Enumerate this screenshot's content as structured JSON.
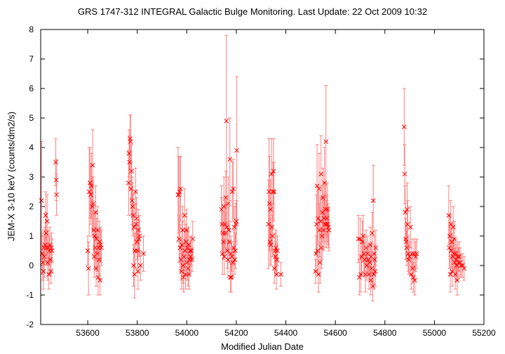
{
  "chart_data": {
    "type": "scatter",
    "title": "GRS 1747-312   INTEGRAL Galactic Bulge Monitoring.  Last Update: 22 Oct 2009 10:32",
    "xlabel": "Modified Julian Date",
    "ylabel": "JEM-X 3-10 keV (counts/dm2/s)",
    "xlim": [
      53410,
      55200
    ],
    "ylim": [
      -2,
      8
    ],
    "xticks": [
      "53600",
      "53800",
      "54000",
      "54200",
      "54400",
      "54600",
      "54800",
      "55000",
      "55200"
    ],
    "yticks": [
      "-2",
      "-1",
      "0",
      "1",
      "2",
      "3",
      "4",
      "5",
      "6",
      "7",
      "8"
    ],
    "grid": false,
    "marker": "x",
    "color": "#ff0000",
    "errorbar_color": "#ff8080",
    "points": [
      [
        53413,
        2.2,
        2.0
      ],
      [
        53416,
        0.4,
        0.7
      ],
      [
        53418,
        0.1,
        0.6
      ],
      [
        53421,
        -0.2,
        0.6
      ],
      [
        53423,
        0.6,
        0.6
      ],
      [
        53425,
        0.3,
        0.7
      ],
      [
        53428,
        0.7,
        0.6
      ],
      [
        53430,
        1.7,
        0.8
      ],
      [
        53432,
        1.1,
        0.7
      ],
      [
        53434,
        0.6,
        0.6
      ],
      [
        53436,
        1.5,
        0.9
      ],
      [
        53438,
        0.1,
        0.6
      ],
      [
        53441,
        0.6,
        0.6
      ],
      [
        53443,
        -0.3,
        0.5
      ],
      [
        53445,
        0.5,
        0.5
      ],
      [
        53447,
        0.7,
        0.6
      ],
      [
        53449,
        0.2,
        0.5
      ],
      [
        53452,
        -0.2,
        0.4
      ],
      [
        53454,
        0.6,
        0.5
      ],
      [
        53456,
        0.5,
        0.4
      ],
      [
        53471,
        3.5,
        0.8
      ],
      [
        53473,
        2.9,
        0.7
      ],
      [
        53474,
        2.4,
        0.7
      ],
      [
        53600,
        0.5,
        0.5
      ],
      [
        53603,
        -0.1,
        0.9
      ],
      [
        53606,
        2.5,
        1.5
      ],
      [
        53609,
        2.8,
        1.2
      ],
      [
        53612,
        2.4,
        1.0
      ],
      [
        53615,
        2.7,
        1.1
      ],
      [
        53618,
        2.0,
        1.0
      ],
      [
        53620,
        3.4,
        1.2
      ],
      [
        53622,
        2.1,
        0.9
      ],
      [
        53624,
        1.2,
        0.8
      ],
      [
        53626,
        0.3,
        0.7
      ],
      [
        53628,
        1.0,
        0.8
      ],
      [
        53630,
        0.6,
        0.7
      ],
      [
        53632,
        1.8,
        0.9
      ],
      [
        53634,
        -0.1,
        0.6
      ],
      [
        53636,
        0.9,
        0.7
      ],
      [
        53638,
        0.4,
        0.6
      ],
      [
        53640,
        1.2,
        0.8
      ],
      [
        53642,
        -0.4,
        0.6
      ],
      [
        53644,
        0.6,
        0.6
      ],
      [
        53646,
        0.2,
        0.5
      ],
      [
        53648,
        0.8,
        0.7
      ],
      [
        53650,
        -0.5,
        0.5
      ],
      [
        53652,
        0.7,
        0.6
      ],
      [
        53655,
        0.6,
        0.6
      ],
      [
        53765,
        2.8,
        1.1
      ],
      [
        53767,
        3.8,
        0.8
      ],
      [
        53769,
        3.5,
        0.9
      ],
      [
        53771,
        4.3,
        0.8
      ],
      [
        53773,
        4.2,
        0.9
      ],
      [
        53775,
        2.6,
        0.9
      ],
      [
        53777,
        3.2,
        0.9
      ],
      [
        53779,
        2.2,
        0.8
      ],
      [
        53781,
        2.0,
        0.8
      ],
      [
        53783,
        1.7,
        0.7
      ],
      [
        53785,
        0.0,
        0.7
      ],
      [
        53787,
        1.3,
        0.8
      ],
      [
        53789,
        -0.3,
        0.8
      ],
      [
        53791,
        0.5,
        0.6
      ],
      [
        53793,
        2.5,
        0.8
      ],
      [
        53795,
        1.4,
        0.7
      ],
      [
        53797,
        1.6,
        0.7
      ],
      [
        53799,
        0.8,
        0.6
      ],
      [
        53801,
        0.5,
        0.6
      ],
      [
        53803,
        -0.2,
        0.6
      ],
      [
        53805,
        1.2,
        0.7
      ],
      [
        53807,
        0.9,
        0.6
      ],
      [
        53809,
        1.0,
        0.7
      ],
      [
        53813,
        0.0,
        0.5
      ],
      [
        53825,
        0.4,
        0.6
      ],
      [
        53965,
        2.4,
        1.6
      ],
      [
        53967,
        2.4,
        1.3
      ],
      [
        53969,
        0.9,
        0.8
      ],
      [
        53971,
        2.5,
        1.2
      ],
      [
        53973,
        0.6,
        0.8
      ],
      [
        53975,
        2.6,
        1.1
      ],
      [
        53977,
        0.2,
        0.7
      ],
      [
        53979,
        -0.2,
        0.6
      ],
      [
        53981,
        0.7,
        0.8
      ],
      [
        53983,
        1.2,
        0.8
      ],
      [
        53985,
        0.0,
        0.6
      ],
      [
        53987,
        -0.4,
        0.5
      ],
      [
        53989,
        0.3,
        0.6
      ],
      [
        53991,
        1.7,
        0.9
      ],
      [
        53993,
        0.5,
        0.7
      ],
      [
        53995,
        -0.3,
        0.5
      ],
      [
        53997,
        0.8,
        0.6
      ],
      [
        53999,
        1.2,
        0.7
      ],
      [
        54001,
        0.1,
        0.6
      ],
      [
        54003,
        0.6,
        0.6
      ],
      [
        54005,
        -0.1,
        0.6
      ],
      [
        54007,
        0.7,
        0.6
      ],
      [
        54009,
        -0.3,
        0.5
      ],
      [
        54011,
        0.2,
        0.5
      ],
      [
        54013,
        0.5,
        0.5
      ],
      [
        54015,
        0.3,
        0.5
      ],
      [
        54018,
        0.5,
        0.5
      ],
      [
        54021,
        0.2,
        0.4
      ],
      [
        54024,
        0.9,
        0.6
      ],
      [
        54140,
        1.9,
        0.8
      ],
      [
        54142,
        1.4,
        0.9
      ],
      [
        54144,
        0.4,
        0.7
      ],
      [
        54146,
        1.1,
        0.7
      ],
      [
        54148,
        0.8,
        0.6
      ],
      [
        54150,
        2.0,
        1.0
      ],
      [
        54152,
        0.3,
        0.6
      ],
      [
        54154,
        1.4,
        0.8
      ],
      [
        54156,
        1.1,
        0.7
      ],
      [
        54158,
        2.3,
        0.9
      ],
      [
        54160,
        4.9,
        2.9
      ],
      [
        54162,
        1.3,
        0.8
      ],
      [
        54164,
        0.5,
        0.6
      ],
      [
        54166,
        0.2,
        0.6
      ],
      [
        54168,
        2.1,
        0.9
      ],
      [
        54170,
        1.2,
        0.8
      ],
      [
        54172,
        0.8,
        0.7
      ],
      [
        54174,
        3.6,
        1.4
      ],
      [
        54176,
        -0.4,
        0.5
      ],
      [
        54178,
        0.4,
        0.6
      ],
      [
        54180,
        -0.4,
        0.5
      ],
      [
        54182,
        0.3,
        0.5
      ],
      [
        54184,
        2.5,
        1.0
      ],
      [
        54186,
        0.1,
        0.5
      ],
      [
        54188,
        2.6,
        1.0
      ],
      [
        54190,
        0.6,
        0.6
      ],
      [
        54192,
        1.3,
        0.7
      ],
      [
        54194,
        0.2,
        0.5
      ],
      [
        54196,
        0.5,
        0.6
      ],
      [
        54198,
        1.4,
        0.7
      ],
      [
        54200,
        1.5,
        0.7
      ],
      [
        54202,
        3.9,
        2.5
      ],
      [
        54330,
        1.4,
        1.5
      ],
      [
        54332,
        2.5,
        1.8
      ],
      [
        54334,
        2.1,
        1.6
      ],
      [
        54336,
        0.8,
        0.8
      ],
      [
        54338,
        1.9,
        1.0
      ],
      [
        54340,
        0.7,
        0.7
      ],
      [
        54342,
        3.1,
        1.2
      ],
      [
        54344,
        1.3,
        0.8
      ],
      [
        54346,
        1.0,
        0.7
      ],
      [
        54348,
        2.5,
        1.0
      ],
      [
        54350,
        3.2,
        1.1
      ],
      [
        54352,
        2.5,
        1.0
      ],
      [
        54354,
        -0.1,
        0.5
      ],
      [
        54356,
        0.5,
        0.6
      ],
      [
        54358,
        0.3,
        0.5
      ],
      [
        54360,
        0.6,
        0.6
      ],
      [
        54362,
        -0.3,
        0.5
      ],
      [
        54364,
        0.2,
        0.5
      ],
      [
        54366,
        0.5,
        0.5
      ],
      [
        54380,
        -0.3,
        0.4
      ],
      [
        54520,
        -0.2,
        0.4
      ],
      [
        54522,
        0.4,
        0.6
      ],
      [
        54524,
        1.4,
        1.0
      ],
      [
        54526,
        2.7,
        1.4
      ],
      [
        54528,
        0.5,
        0.8
      ],
      [
        54530,
        1.6,
        0.9
      ],
      [
        54532,
        -0.3,
        0.6
      ],
      [
        54534,
        2.6,
        1.2
      ],
      [
        54536,
        1.2,
        0.9
      ],
      [
        54538,
        0.1,
        0.7
      ],
      [
        54540,
        1.5,
        0.8
      ],
      [
        54542,
        3.1,
        1.3
      ],
      [
        54544,
        0.6,
        0.7
      ],
      [
        54546,
        1.0,
        0.8
      ],
      [
        54548,
        1.8,
        0.9
      ],
      [
        54550,
        2.3,
        1.0
      ],
      [
        54552,
        1.2,
        0.7
      ],
      [
        54554,
        1.6,
        0.8
      ],
      [
        54556,
        2.8,
        1.2
      ],
      [
        54558,
        1.4,
        0.8
      ],
      [
        54560,
        1.9,
        0.9
      ],
      [
        54562,
        4.2,
        1.9
      ],
      [
        54564,
        1.4,
        0.8
      ],
      [
        54566,
        1.6,
        0.8
      ],
      [
        54568,
        1.9,
        0.9
      ],
      [
        54570,
        1.4,
        0.7
      ],
      [
        54572,
        1.3,
        0.7
      ],
      [
        54574,
        1.2,
        0.7
      ],
      [
        54693,
        0.9,
        0.8
      ],
      [
        54697,
        -0.4,
        0.6
      ],
      [
        54700,
        0.9,
        0.7
      ],
      [
        54703,
        -0.3,
        0.6
      ],
      [
        54706,
        0.3,
        0.6
      ],
      [
        54709,
        0.8,
        0.7
      ],
      [
        54712,
        1.0,
        0.7
      ],
      [
        54715,
        0.4,
        0.6
      ],
      [
        54718,
        0.2,
        0.6
      ],
      [
        54721,
        -0.3,
        0.6
      ],
      [
        54724,
        0.6,
        0.6
      ],
      [
        54727,
        0.0,
        0.5
      ],
      [
        54730,
        0.4,
        0.6
      ],
      [
        54733,
        0.2,
        0.5
      ],
      [
        54736,
        -0.3,
        0.5
      ],
      [
        54739,
        0.1,
        0.5
      ],
      [
        54741,
        0.7,
        0.6
      ],
      [
        54743,
        -0.5,
        0.5
      ],
      [
        54745,
        0.3,
        0.5
      ],
      [
        54747,
        -0.1,
        0.5
      ],
      [
        54749,
        1.1,
        0.7
      ],
      [
        54751,
        -0.7,
        0.5
      ],
      [
        54753,
        2.2,
        1.2
      ],
      [
        54755,
        -0.3,
        0.5
      ],
      [
        54757,
        0.4,
        0.6
      ],
      [
        54759,
        0.2,
        0.5
      ],
      [
        54761,
        -0.2,
        0.5
      ],
      [
        54763,
        0.6,
        0.6
      ],
      [
        54878,
        4.7,
        1.3
      ],
      [
        54880,
        3.1,
        1.0
      ],
      [
        54882,
        1.8,
        0.9
      ],
      [
        54884,
        0.9,
        0.7
      ],
      [
        54886,
        0.8,
        0.6
      ],
      [
        54888,
        0.6,
        0.6
      ],
      [
        54890,
        1.9,
        0.9
      ],
      [
        54892,
        1.4,
        0.8
      ],
      [
        54894,
        0.4,
        0.6
      ],
      [
        54896,
        0.2,
        0.5
      ],
      [
        54900,
        0.3,
        0.5
      ],
      [
        54903,
        1.3,
        0.7
      ],
      [
        54906,
        -0.3,
        0.5
      ],
      [
        54909,
        0.4,
        0.5
      ],
      [
        54912,
        -0.1,
        0.5
      ],
      [
        54915,
        -0.4,
        0.5
      ],
      [
        54918,
        0.4,
        0.5
      ],
      [
        54921,
        -0.5,
        0.5
      ],
      [
        54924,
        0.3,
        0.5
      ],
      [
        54928,
        0.4,
        0.5
      ],
      [
        55058,
        1.7,
        1.0
      ],
      [
        55060,
        0.6,
        0.7
      ],
      [
        55062,
        1.0,
        0.7
      ],
      [
        55064,
        -0.3,
        0.6
      ],
      [
        55066,
        1.4,
        0.8
      ],
      [
        55068,
        0.5,
        0.6
      ],
      [
        55070,
        0.8,
        0.6
      ],
      [
        55072,
        -0.2,
        0.5
      ],
      [
        55074,
        0.3,
        0.5
      ],
      [
        55076,
        1.3,
        0.7
      ],
      [
        55078,
        0.4,
        0.5
      ],
      [
        55080,
        0.9,
        0.6
      ],
      [
        55082,
        0.1,
        0.5
      ],
      [
        55084,
        -0.3,
        0.5
      ],
      [
        55086,
        0.4,
        0.5
      ],
      [
        55088,
        0.2,
        0.5
      ],
      [
        55090,
        0.0,
        0.5
      ],
      [
        55092,
        -0.5,
        0.5
      ],
      [
        55094,
        0.3,
        0.5
      ],
      [
        55097,
        0.1,
        0.5
      ],
      [
        55100,
        0.3,
        0.5
      ],
      [
        55104,
        0.1,
        0.5
      ],
      [
        55108,
        0.0,
        0.4
      ],
      [
        55114,
        0.0,
        0.4
      ],
      [
        55120,
        -0.1,
        0.4
      ]
    ]
  }
}
